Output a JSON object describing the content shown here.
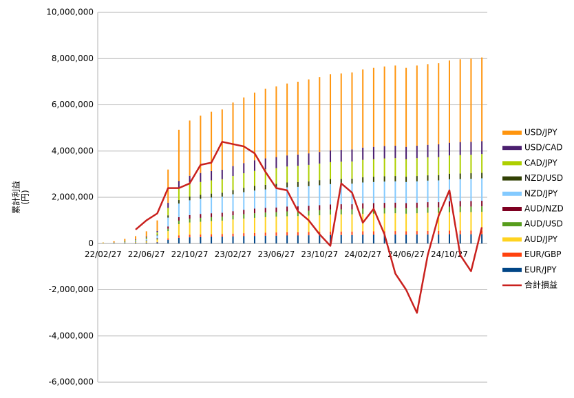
{
  "chart_data": {
    "type": "bar",
    "stacked": true,
    "y_label": [
      "累計利益",
      "(円)"
    ],
    "categories": [
      "22/02/27",
      null,
      null,
      null,
      "22/06/27",
      null,
      null,
      null,
      "22/10/27",
      null,
      null,
      null,
      "23/02/27",
      null,
      null,
      null,
      "23/06/27",
      null,
      null,
      null,
      "23/10/27",
      null,
      null,
      null,
      "24/02/27",
      null,
      null,
      null,
      "24/06/27",
      null,
      null,
      null,
      "24/10/27",
      null,
      null,
      null
    ],
    "series": [
      {
        "name": "EUR/JPY",
        "color": "#004586",
        "values": [
          0,
          10000,
          10000,
          20000,
          30000,
          50000,
          160000,
          250000,
          270000,
          280000,
          290000,
          290000,
          310000,
          320000,
          330000,
          340000,
          340000,
          350000,
          350000,
          360000,
          360000,
          370000,
          370000,
          370000,
          380000,
          380000,
          380000,
          390000,
          380000,
          390000,
          390000,
          390000,
          400000,
          400000,
          400000,
          400000
        ]
      },
      {
        "name": "EUR/GBP",
        "color": "#ff420e",
        "values": [
          0,
          0,
          0,
          10000,
          10000,
          20000,
          60000,
          100000,
          110000,
          110000,
          110000,
          120000,
          120000,
          130000,
          130000,
          130000,
          140000,
          140000,
          140000,
          140000,
          140000,
          150000,
          150000,
          150000,
          150000,
          150000,
          150000,
          150000,
          150000,
          150000,
          160000,
          160000,
          160000,
          160000,
          160000,
          160000
        ]
      },
      {
        "name": "AUD/JPY",
        "color": "#ffd320",
        "values": [
          10000,
          10000,
          20000,
          30000,
          50000,
          100000,
          320000,
          490000,
          530000,
          550000,
          570000,
          580000,
          610000,
          630000,
          650000,
          670000,
          680000,
          690000,
          700000,
          710000,
          720000,
          730000,
          740000,
          740000,
          750000,
          760000,
          770000,
          770000,
          760000,
          770000,
          780000,
          780000,
          790000,
          800000,
          800000,
          810000
        ]
      },
      {
        "name": "AUD/USD",
        "color": "#579d1c",
        "values": [
          0,
          0,
          10000,
          10000,
          20000,
          30000,
          100000,
          150000,
          160000,
          170000,
          170000,
          170000,
          180000,
          190000,
          200000,
          200000,
          200000,
          210000,
          210000,
          210000,
          220000,
          220000,
          220000,
          220000,
          230000,
          230000,
          230000,
          230000,
          230000,
          230000,
          230000,
          230000,
          240000,
          240000,
          240000,
          240000
        ]
      },
      {
        "name": "AUD/NZD",
        "color": "#7e0021",
        "values": [
          0,
          0,
          10000,
          10000,
          20000,
          30000,
          100000,
          150000,
          160000,
          170000,
          170000,
          170000,
          180000,
          190000,
          200000,
          200000,
          200000,
          210000,
          210000,
          210000,
          220000,
          220000,
          220000,
          220000,
          230000,
          230000,
          230000,
          230000,
          230000,
          230000,
          230000,
          230000,
          240000,
          240000,
          240000,
          240000
        ]
      },
      {
        "name": "NZD/JPY",
        "color": "#83caff",
        "values": [
          10000,
          10000,
          20000,
          40000,
          60000,
          120000,
          380000,
          590000,
          640000,
          660000,
          680000,
          700000,
          730000,
          760000,
          780000,
          800000,
          820000,
          830000,
          840000,
          850000,
          860000,
          880000,
          880000,
          890000,
          900000,
          910000,
          920000,
          920000,
          910000,
          920000,
          930000,
          940000,
          950000,
          950000,
          960000,
          970000
        ]
      },
      {
        "name": "NZD/USD",
        "color": "#314004",
        "values": [
          0,
          0,
          10000,
          10000,
          20000,
          30000,
          100000,
          150000,
          160000,
          170000,
          170000,
          170000,
          180000,
          190000,
          200000,
          200000,
          200000,
          210000,
          210000,
          210000,
          220000,
          220000,
          220000,
          220000,
          230000,
          230000,
          230000,
          230000,
          230000,
          230000,
          230000,
          230000,
          240000,
          240000,
          240000,
          240000
        ]
      },
      {
        "name": "CAD/JPY",
        "color": "#aecf00",
        "values": [
          10000,
          10000,
          20000,
          30000,
          50000,
          100000,
          320000,
          490000,
          530000,
          550000,
          570000,
          580000,
          610000,
          630000,
          650000,
          670000,
          680000,
          690000,
          700000,
          710000,
          720000,
          730000,
          740000,
          740000,
          750000,
          760000,
          770000,
          770000,
          760000,
          770000,
          780000,
          780000,
          790000,
          800000,
          800000,
          810000
        ]
      },
      {
        "name": "USD/CAD",
        "color": "#4b1f6f",
        "values": [
          0,
          10000,
          10000,
          20000,
          40000,
          70000,
          220000,
          340000,
          370000,
          390000,
          400000,
          410000,
          430000,
          440000,
          460000,
          470000,
          480000,
          480000,
          490000,
          500000,
          500000,
          510000,
          510000,
          520000,
          530000,
          530000,
          540000,
          540000,
          530000,
          540000,
          540000,
          550000,
          550000,
          560000,
          560000,
          560000
        ]
      },
      {
        "name": "USD/JPY",
        "color": "#ff950e",
        "values": [
          20000,
          50000,
          90000,
          140000,
          230000,
          450000,
          1440000,
          2210000,
          2390000,
          2480000,
          2570000,
          2610000,
          2750000,
          2840000,
          2930000,
          3020000,
          3060000,
          3110000,
          3150000,
          3200000,
          3240000,
          3290000,
          3310000,
          3330000,
          3380000,
          3420000,
          3440000,
          3470000,
          3420000,
          3470000,
          3490000,
          3510000,
          3560000,
          3580000,
          3600000,
          3620000
        ]
      },
      {
        "name": "合計損益",
        "type": "line",
        "color": "#c9211e",
        "values": [
          null,
          null,
          null,
          600000,
          1000000,
          1300000,
          2400000,
          2400000,
          2600000,
          3400000,
          3500000,
          4400000,
          4300000,
          4200000,
          3900000,
          3100000,
          2400000,
          2300000,
          1400000,
          1000000,
          400000,
          -100000,
          2600000,
          2200000,
          900000,
          1500000,
          400000,
          -1300000,
          -2000000,
          -3000000,
          -500000,
          1200000,
          2300000,
          -500000,
          -1200000,
          700000
        ]
      }
    ],
    "ylim": [
      -6000000,
      10000000
    ],
    "yticks": [
      {
        "value": -6000000,
        "label": "-6,000,000"
      },
      {
        "value": -4000000,
        "label": "-4,000,000"
      },
      {
        "value": -2000000,
        "label": "-2,000,000"
      },
      0,
      {
        "value": 2000000,
        "label": "2,000,000"
      },
      {
        "value": 4000000,
        "label": "4,000,000"
      },
      {
        "value": 6000000,
        "label": "6,000,000"
      },
      {
        "value": 8000000,
        "label": "8,000,000"
      },
      {
        "value": 10000000,
        "label": "10,000,000"
      }
    ],
    "grid": true,
    "legend": "right"
  }
}
